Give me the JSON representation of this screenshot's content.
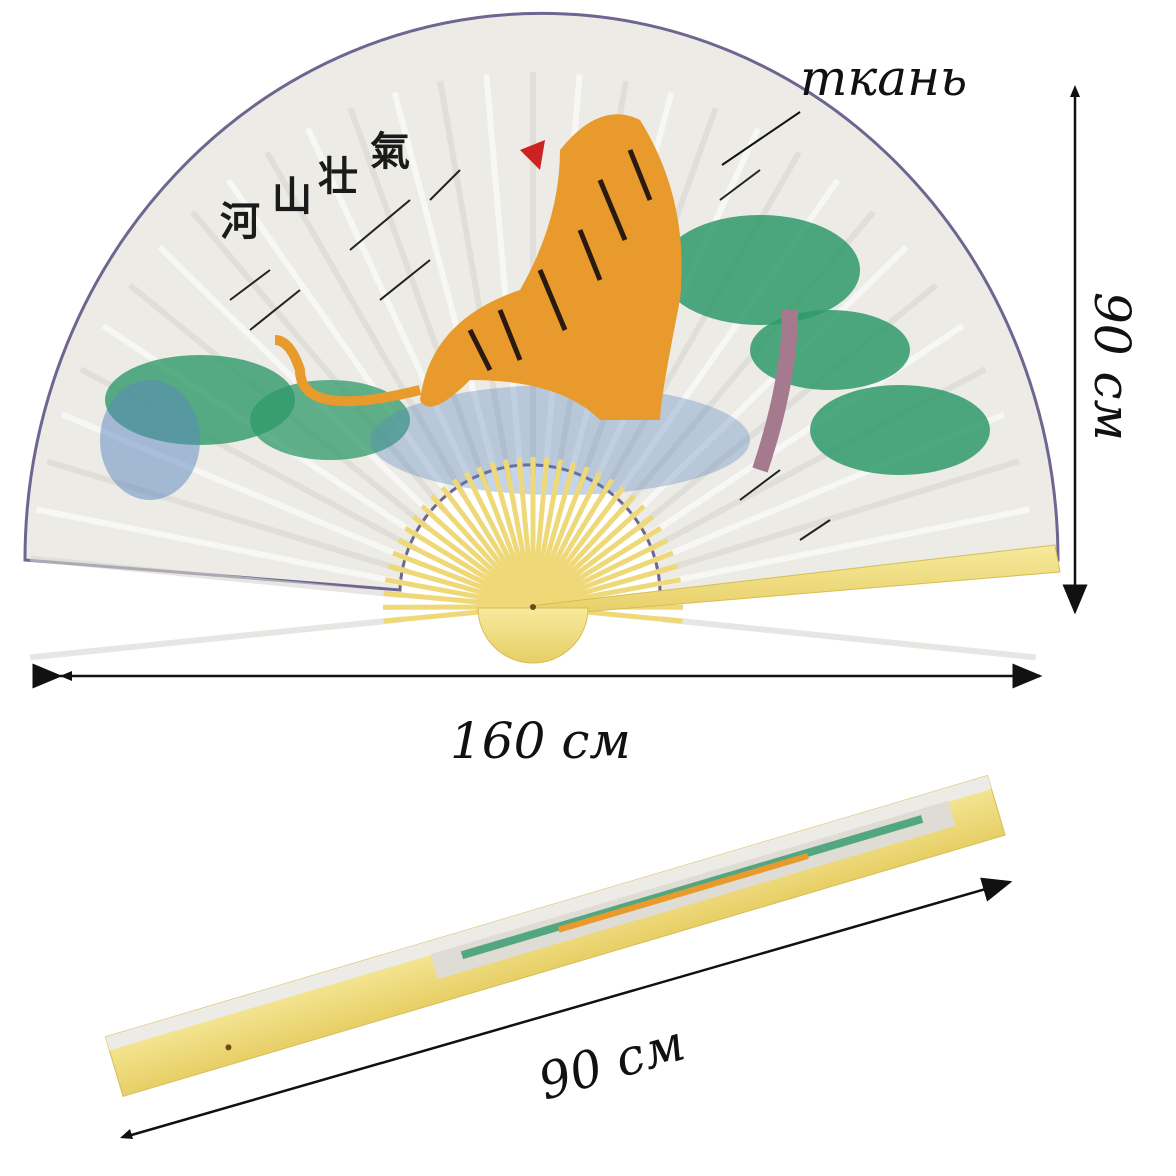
{
  "labels": {
    "material": "ткань",
    "height": "90 см",
    "width": "160 см",
    "closed_length": "90 см"
  },
  "artwork": {
    "calligraphy": [
      "河",
      "山",
      "壮",
      "氣"
    ],
    "subject": "tiger"
  },
  "colors": {
    "paper": "#ecebe6",
    "bamboo": "#f2e08a",
    "edge": "#6e6690",
    "pine_green": "#2f9a6a",
    "tiger_orange": "#e89a2c",
    "water_blue": "#5a86c0"
  }
}
